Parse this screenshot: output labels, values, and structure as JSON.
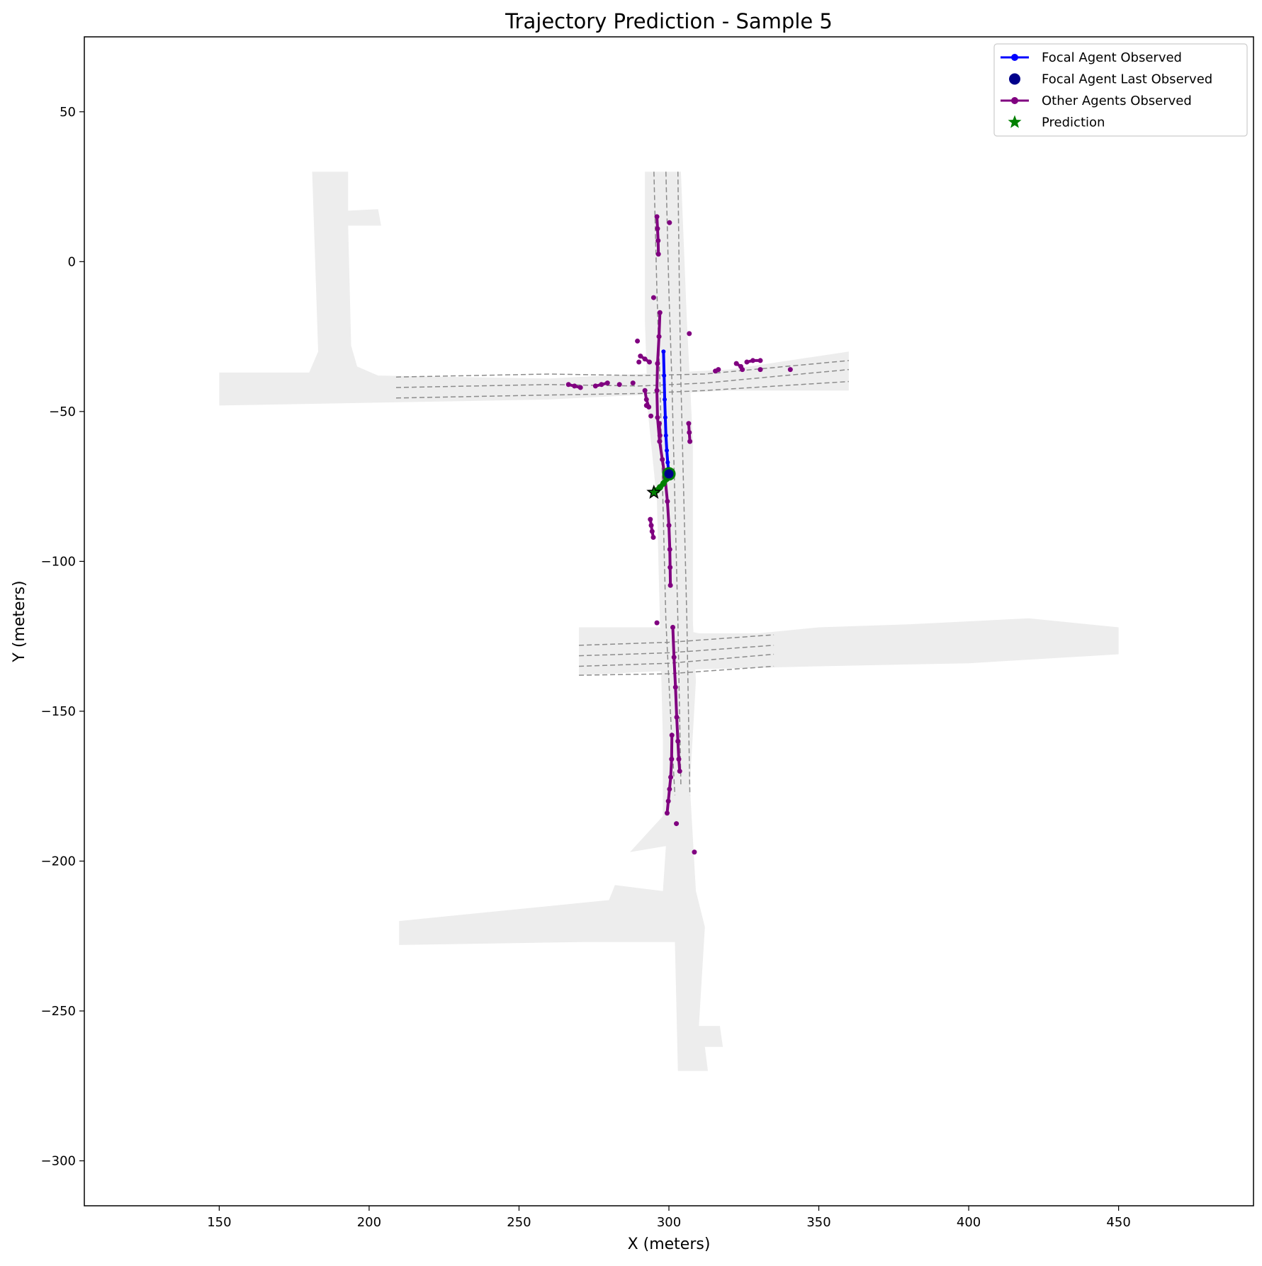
{
  "chart_data": {
    "type": "scatter",
    "title": "Trajectory Prediction - Sample 5",
    "xlabel": "X (meters)",
    "ylabel": "Y (meters)",
    "xlim": [
      105,
      495
    ],
    "ylim": [
      -315,
      75
    ],
    "xticks": [
      150,
      200,
      250,
      300,
      350,
      400,
      450
    ],
    "yticks": [
      50,
      0,
      -50,
      -100,
      -150,
      -200,
      -250,
      -300
    ],
    "ytick_labels": [
      "50",
      "0",
      "−50",
      "−100",
      "−150",
      "−200",
      "−250",
      "−300"
    ],
    "grid": false,
    "legend_position": "top-right",
    "legend": [
      {
        "label": "Focal Agent Observed",
        "marker": "line-dot",
        "color": "#0000ff"
      },
      {
        "label": "Focal Agent Last Observed",
        "marker": "dot",
        "color": "#00008b"
      },
      {
        "label": "Other Agents Observed",
        "marker": "line-dot",
        "color": "#800080"
      },
      {
        "label": "Prediction",
        "marker": "star",
        "color": "#008000"
      }
    ],
    "colors": {
      "road": "#ededed",
      "lane": "#8c8c8c",
      "focal": "#0000ff",
      "focal_last": "#00008b",
      "other": "#800080",
      "prediction": "#008000"
    },
    "road_polygons": [
      [
        [
          181,
          30
        ],
        [
          193,
          30
        ],
        [
          193,
          17
        ],
        [
          203,
          17.5
        ],
        [
          204,
          12
        ],
        [
          193,
          12
        ],
        [
          194,
          -28
        ],
        [
          196,
          -35
        ],
        [
          203,
          -38
        ],
        [
          260,
          -39
        ],
        [
          320,
          -36
        ],
        [
          360,
          -30
        ],
        [
          360,
          -43
        ],
        [
          320,
          -43
        ],
        [
          260,
          -46
        ],
        [
          150,
          -48
        ],
        [
          150,
          -37
        ],
        [
          180,
          -37
        ],
        [
          183,
          -30
        ]
      ],
      [
        [
          292,
          30
        ],
        [
          304,
          30
        ],
        [
          306,
          -20
        ],
        [
          308,
          -60
        ],
        [
          308,
          -120
        ],
        [
          309,
          -140
        ],
        [
          307,
          -175
        ],
        [
          309,
          -210
        ],
        [
          312,
          -222
        ],
        [
          310,
          -255
        ],
        [
          317,
          -255
        ],
        [
          318,
          -262
        ],
        [
          312,
          -262
        ],
        [
          313,
          -270
        ],
        [
          303,
          -270
        ],
        [
          302,
          -227
        ],
        [
          271,
          -227
        ],
        [
          210,
          -228
        ],
        [
          210,
          -220
        ],
        [
          280,
          -213
        ],
        [
          282,
          -208
        ],
        [
          298,
          -210
        ],
        [
          299,
          -195
        ],
        [
          287,
          -197
        ],
        [
          298,
          -185
        ],
        [
          298,
          -160
        ],
        [
          297,
          -120
        ],
        [
          296,
          -80
        ],
        [
          293,
          -50
        ],
        [
          292,
          -20
        ]
      ],
      [
        [
          270,
          -122
        ],
        [
          300,
          -122
        ],
        [
          310,
          -124
        ],
        [
          330,
          -124
        ],
        [
          350,
          -122
        ],
        [
          380,
          -121
        ],
        [
          420,
          -119
        ],
        [
          450,
          -122
        ],
        [
          450,
          -131
        ],
        [
          400,
          -134
        ],
        [
          350,
          -135
        ],
        [
          310,
          -136
        ],
        [
          270,
          -138
        ]
      ]
    ],
    "lanes": [
      {
        "x": [
          209,
          260,
          290,
          312,
          360
        ],
        "y": [
          -38.5,
          -37.5,
          -38,
          -37.5,
          -33
        ]
      },
      {
        "x": [
          209,
          260,
          290,
          312,
          360
        ],
        "y": [
          -42,
          -41,
          -41.5,
          -40.5,
          -36
        ]
      },
      {
        "x": [
          209,
          260,
          290,
          312,
          360
        ],
        "y": [
          -45.5,
          -44.5,
          -44,
          -43,
          -40
        ]
      },
      {
        "x": [
          295,
          296,
          297,
          298,
          299,
          301,
          302
        ],
        "y": [
          30,
          -10,
          -40,
          -80,
          -120,
          -160,
          -178
        ]
      },
      {
        "x": [
          299,
          300,
          301,
          302,
          303,
          304
        ],
        "y": [
          30,
          -10,
          -40,
          -80,
          -120,
          -175
        ]
      },
      {
        "x": [
          303,
          303.5,
          304,
          305,
          306,
          307
        ],
        "y": [
          30,
          -10,
          -40,
          -80,
          -120,
          -178
        ]
      },
      {
        "x": [
          270,
          300,
          335
        ],
        "y": [
          -128,
          -127,
          -124.5
        ]
      },
      {
        "x": [
          270,
          300,
          335
        ],
        "y": [
          -131.5,
          -130.5,
          -128
        ]
      },
      {
        "x": [
          270,
          300,
          335
        ],
        "y": [
          -135,
          -134,
          -131
        ]
      },
      {
        "x": [
          270,
          300,
          335
        ],
        "y": [
          -138,
          -137.5,
          -135
        ]
      }
    ],
    "focal_observed": {
      "x": [
        298.2,
        298.4,
        298.6,
        298.8,
        299.0,
        299.3,
        299.6,
        300.0
      ],
      "y": [
        -30,
        -38,
        -46,
        -52,
        -58,
        -63,
        -67,
        -70.8
      ]
    },
    "focal_last_observed": {
      "x": 300.0,
      "y": -70.8
    },
    "prediction": {
      "x": [
        300.0,
        299.2,
        298.2,
        297.0,
        296.0,
        295.0
      ],
      "y": [
        -71,
        -72.5,
        -74,
        -75.3,
        -76.3,
        -77
      ]
    },
    "other_agents": [
      {
        "x": [
          296.0,
          296.2,
          296.4,
          296.5
        ],
        "y": [
          15,
          11,
          7,
          2.5
        ]
      },
      {
        "x": [
          300.2
        ],
        "y": [
          13
        ]
      },
      {
        "x": [
          294.9
        ],
        "y": [
          -12
        ]
      },
      {
        "x": [
          297.0,
          296.7,
          296.2,
          296.0,
          296.2,
          296.9,
          297.8,
          298.7,
          299.5,
          300.0,
          300.3,
          300.4,
          300.5
        ],
        "y": [
          -17,
          -25,
          -34,
          -43,
          -52,
          -60,
          -66,
          -72,
          -80,
          -88,
          -96,
          -102,
          -108
        ]
      },
      {
        "x": [
          306.8
        ],
        "y": [
          -24
        ]
      },
      {
        "x": [
          289.5
        ],
        "y": [
          -26.5
        ]
      },
      {
        "x": [
          290.5,
          292.0,
          293.5
        ],
        "y": [
          -31.5,
          -32.5,
          -33.5
        ]
      },
      {
        "x": [
          290.0
        ],
        "y": [
          -33.5
        ]
      },
      {
        "x": [
          292.0,
          292.5,
          293.3
        ],
        "y": [
          -43,
          -46,
          -48.5
        ]
      },
      {
        "x": [
          292.5
        ],
        "y": [
          -48
        ]
      },
      {
        "x": [
          294.0
        ],
        "y": [
          -51.5
        ]
      },
      {
        "x": [
          296.8,
          297.0
        ],
        "y": [
          -54,
          -58
        ]
      },
      {
        "x": [
          306.6,
          306.8,
          307.0
        ],
        "y": [
          -54,
          -57,
          -60
        ]
      },
      {
        "x": [
          266.5,
          268.5,
          270.5
        ],
        "y": [
          -41,
          -41.5,
          -42
        ]
      },
      {
        "x": [
          275.5,
          277.5,
          279.5
        ],
        "y": [
          -41.5,
          -41,
          -40.5
        ]
      },
      {
        "x": [
          283.5
        ],
        "y": [
          -41
        ]
      },
      {
        "x": [
          288.0
        ],
        "y": [
          -40.5
        ]
      },
      {
        "x": [
          315.5,
          316.5
        ],
        "y": [
          -36.5,
          -36
        ]
      },
      {
        "x": [
          322.5,
          324
        ],
        "y": [
          -34,
          -35
        ]
      },
      {
        "x": [
          324.5
        ],
        "y": [
          -36
        ]
      },
      {
        "x": [
          326,
          328,
          330.5
        ],
        "y": [
          -33.5,
          -33,
          -33
        ]
      },
      {
        "x": [
          330.5
        ],
        "y": [
          -36
        ]
      },
      {
        "x": [
          340.5
        ],
        "y": [
          -36
        ]
      },
      {
        "x": [
          293.8,
          294.1,
          294.4,
          294.8
        ],
        "y": [
          -86,
          -88,
          -90,
          -92
        ]
      },
      {
        "x": [
          296.0
        ],
        "y": [
          -120.5
        ]
      },
      {
        "x": [
          301.3,
          301.7,
          302.2,
          302.6,
          303.0,
          303.3,
          303.6
        ],
        "y": [
          -122,
          -132,
          -142,
          -152,
          -160,
          -166,
          -170
        ]
      },
      {
        "x": [
          301.0,
          300.9,
          300.6,
          300.2,
          299.8,
          299.4
        ],
        "y": [
          -158,
          -166,
          -172,
          -176,
          -180,
          -184
        ]
      },
      {
        "x": [
          302.5
        ],
        "y": [
          -187.5
        ]
      },
      {
        "x": [
          308.5
        ],
        "y": [
          -197
        ]
      }
    ]
  }
}
